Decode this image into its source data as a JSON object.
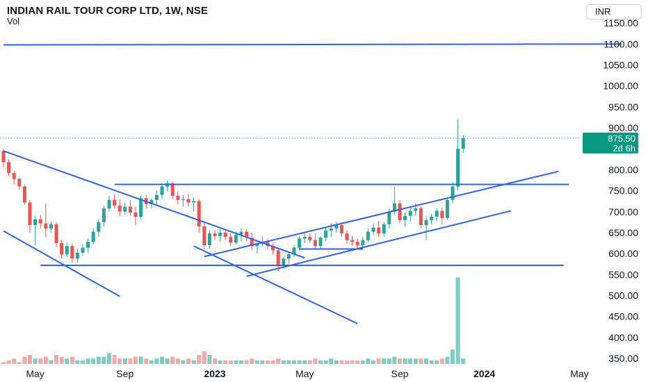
{
  "header": {
    "symbol_title": "INDIAN RAIL TOUR CORP LTD, 1W, NSE",
    "volume_label": "Vol",
    "currency": "INR"
  },
  "price_badge": {
    "price": "875.50",
    "countdown": "2d 6h",
    "color": "#089981"
  },
  "colors": {
    "up": "#26a69a",
    "down": "#ef5350",
    "vol_up": "#80cbc4",
    "vol_down": "#f7a9a7",
    "trendline": "#2962ff"
  },
  "chart_data": {
    "type": "candlestick",
    "ylim": [
      340,
      1165
    ],
    "y_ticks": [
      "1150.00",
      "1100.00",
      "1050.00",
      "1000.00",
      "950.00",
      "900.00",
      "850.00",
      "800.00",
      "750.00",
      "700.00",
      "650.00",
      "600.00",
      "550.00",
      "500.00",
      "450.00",
      "400.00",
      "350.00"
    ],
    "x_labels": [
      {
        "label": "May",
        "week": 6,
        "bold": false
      },
      {
        "label": "Sep",
        "week": 23,
        "bold": false
      },
      {
        "label": "2023",
        "week": 40,
        "bold": true
      },
      {
        "label": "May",
        "week": 57,
        "bold": false
      },
      {
        "label": "Sep",
        "week": 75,
        "bold": false
      },
      {
        "label": "2024",
        "week": 91,
        "bold": true
      },
      {
        "label": "May",
        "week": 109,
        "bold": false
      }
    ],
    "candles": [
      [
        845,
        850,
        805,
        818,
        1
      ],
      [
        818,
        825,
        785,
        792,
        2
      ],
      [
        792,
        798,
        765,
        778,
        3
      ],
      [
        778,
        782,
        752,
        760,
        1
      ],
      [
        760,
        765,
        718,
        722,
        4
      ],
      [
        722,
        728,
        650,
        668,
        5
      ],
      [
        668,
        690,
        620,
        682,
        3
      ],
      [
        682,
        692,
        660,
        672,
        3
      ],
      [
        672,
        720,
        640,
        660,
        4
      ],
      [
        660,
        676,
        650,
        670,
        2
      ],
      [
        670,
        675,
        615,
        625,
        5
      ],
      [
        625,
        632,
        588,
        598,
        4
      ],
      [
        598,
        626,
        592,
        618,
        3
      ],
      [
        618,
        624,
        578,
        588,
        4
      ],
      [
        588,
        612,
        578,
        602,
        2
      ],
      [
        602,
        622,
        595,
        614,
        2
      ],
      [
        614,
        636,
        602,
        628,
        3
      ],
      [
        628,
        660,
        622,
        652,
        3
      ],
      [
        652,
        682,
        640,
        675,
        4
      ],
      [
        675,
        715,
        665,
        708,
        4
      ],
      [
        708,
        738,
        700,
        728,
        6
      ],
      [
        728,
        742,
        708,
        715,
        5
      ],
      [
        715,
        730,
        690,
        700,
        3
      ],
      [
        700,
        722,
        692,
        712,
        3
      ],
      [
        712,
        728,
        690,
        698,
        3
      ],
      [
        698,
        712,
        668,
        688,
        4
      ],
      [
        688,
        738,
        683,
        732,
        4
      ],
      [
        732,
        740,
        708,
        718,
        3
      ],
      [
        718,
        732,
        708,
        728,
        2
      ],
      [
        728,
        750,
        715,
        740,
        3
      ],
      [
        740,
        768,
        730,
        760,
        4
      ],
      [
        760,
        775,
        748,
        768,
        3
      ],
      [
        768,
        772,
        730,
        738,
        4
      ],
      [
        738,
        748,
        718,
        728,
        3
      ],
      [
        728,
        740,
        712,
        730,
        2
      ],
      [
        730,
        742,
        712,
        722,
        3
      ],
      [
        722,
        735,
        700,
        725,
        2
      ],
      [
        725,
        730,
        650,
        665,
        5
      ],
      [
        665,
        675,
        610,
        620,
        7
      ],
      [
        620,
        655,
        612,
        648,
        5
      ],
      [
        648,
        656,
        632,
        642,
        3
      ],
      [
        642,
        658,
        628,
        650,
        2
      ],
      [
        650,
        655,
        632,
        640,
        2
      ],
      [
        640,
        648,
        618,
        626,
        2
      ],
      [
        626,
        652,
        622,
        645,
        2
      ],
      [
        645,
        660,
        630,
        652,
        2
      ],
      [
        652,
        658,
        630,
        638,
        2
      ],
      [
        638,
        650,
        608,
        618,
        3
      ],
      [
        618,
        630,
        600,
        624,
        2
      ],
      [
        624,
        642,
        618,
        628,
        2
      ],
      [
        628,
        636,
        610,
        618,
        2
      ],
      [
        618,
        626,
        598,
        608,
        2
      ],
      [
        608,
        612,
        558,
        572,
        3
      ],
      [
        572,
        592,
        565,
        588,
        2
      ],
      [
        588,
        604,
        576,
        598,
        2
      ],
      [
        598,
        620,
        592,
        614,
        2
      ],
      [
        614,
        642,
        608,
        636,
        2
      ],
      [
        636,
        652,
        625,
        640,
        2
      ],
      [
        640,
        648,
        626,
        632,
        2
      ],
      [
        632,
        648,
        612,
        618,
        3
      ],
      [
        618,
        642,
        612,
        638,
        2
      ],
      [
        638,
        662,
        630,
        655,
        2
      ],
      [
        655,
        672,
        640,
        660,
        3
      ],
      [
        660,
        676,
        650,
        668,
        2
      ],
      [
        668,
        675,
        640,
        648,
        2
      ],
      [
        648,
        656,
        624,
        632,
        2
      ],
      [
        632,
        642,
        618,
        628,
        2
      ],
      [
        628,
        636,
        610,
        620,
        2
      ],
      [
        620,
        640,
        614,
        632,
        2
      ],
      [
        632,
        660,
        626,
        652,
        3
      ],
      [
        652,
        672,
        644,
        662,
        2
      ],
      [
        662,
        678,
        640,
        648,
        3
      ],
      [
        648,
        675,
        640,
        670,
        3
      ],
      [
        670,
        708,
        660,
        700,
        3
      ],
      [
        700,
        760,
        692,
        720,
        4
      ],
      [
        720,
        728,
        672,
        680,
        3
      ],
      [
        680,
        698,
        665,
        690,
        3
      ],
      [
        690,
        710,
        676,
        702,
        3
      ],
      [
        702,
        720,
        690,
        708,
        3
      ],
      [
        708,
        712,
        660,
        668,
        3
      ],
      [
        668,
        690,
        632,
        680,
        3
      ],
      [
        680,
        695,
        670,
        688,
        2
      ],
      [
        688,
        708,
        678,
        702,
        2
      ],
      [
        702,
        710,
        670,
        685,
        3
      ],
      [
        685,
        735,
        680,
        728,
        4
      ],
      [
        728,
        770,
        720,
        760,
        8
      ],
      [
        760,
        920,
        752,
        850,
        48
      ],
      [
        850,
        882,
        840,
        875.5,
        3
      ]
    ],
    "trendlines": [
      {
        "name": "upper-descending",
        "points": [
          [
            0,
            845
          ],
          [
            57,
            590
          ]
        ]
      },
      {
        "name": "lower-descending",
        "points": [
          [
            0,
            654
          ],
          [
            22,
            498
          ]
        ]
      },
      {
        "name": "steep-descending",
        "points": [
          [
            36,
            618
          ],
          [
            67,
            433
          ]
        ]
      },
      {
        "name": "resistance-top",
        "points": [
          [
            0,
            1098
          ],
          [
            117,
            1100
          ]
        ]
      },
      {
        "name": "resistance-765",
        "points": [
          [
            21,
            765
          ],
          [
            107,
            765
          ]
        ]
      },
      {
        "name": "support-572",
        "points": [
          [
            7,
            572
          ],
          [
            106,
            572
          ]
        ]
      },
      {
        "name": "channel-upper",
        "points": [
          [
            38,
            593
          ],
          [
            105,
            796
          ]
        ]
      },
      {
        "name": "channel-lower",
        "points": [
          [
            46,
            546
          ],
          [
            96,
            702
          ]
        ]
      },
      {
        "name": "small-base",
        "points": [
          [
            56,
            611
          ],
          [
            68,
            611
          ]
        ]
      }
    ]
  }
}
